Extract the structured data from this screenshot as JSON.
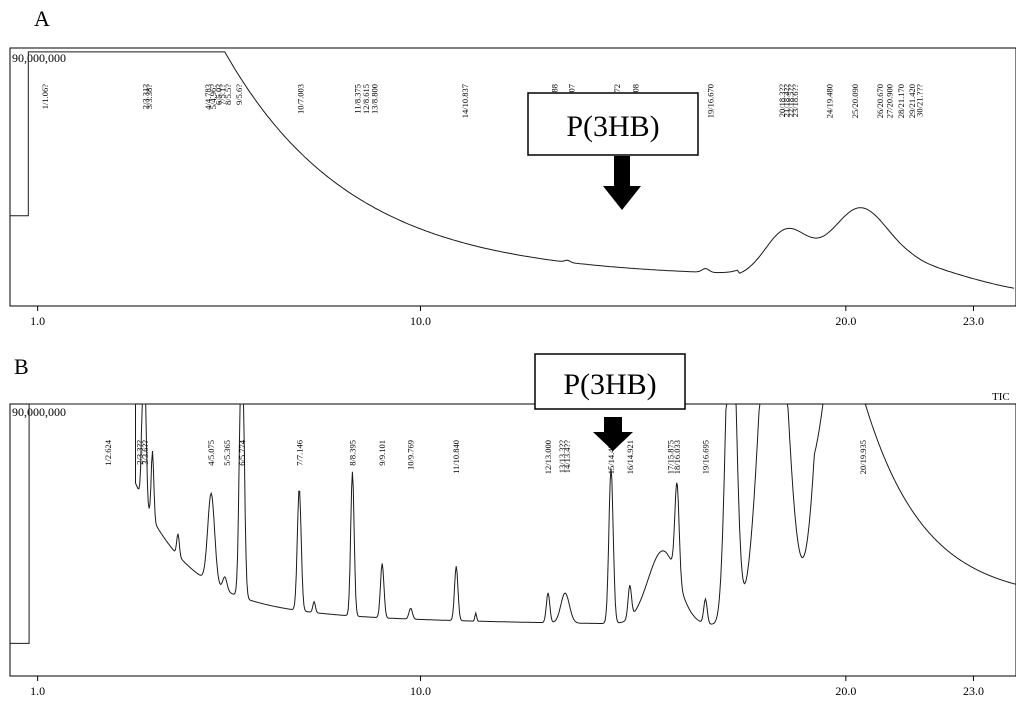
{
  "chart_data": [
    {
      "type": "line",
      "panel_label": "A",
      "y_max_label": "90,000,000",
      "tic_label": "",
      "xlim": [
        0.35,
        24.0
      ],
      "x_ticks": [
        {
          "v": 1.0,
          "label": "1.0"
        },
        {
          "v": 10.0,
          "label": "10.0"
        },
        {
          "v": 20.0,
          "label": "20.0"
        },
        {
          "v": 23.0,
          "label": "23.0"
        }
      ],
      "callout": {
        "label": "P(3HB)",
        "x": 14.5
      },
      "peak_labels": [
        {
          "x": 1.17,
          "text": "1/1.06?"
        },
        {
          "x": 3.53,
          "text": "2/3.31?"
        },
        {
          "x": 3.62,
          "text": "3/3.38?"
        },
        {
          "x": 5.0,
          "text": "4/4.783"
        },
        {
          "x": 5.12,
          "text": "5/4.96?"
        },
        {
          "x": 5.25,
          "text": "6/5.0?"
        },
        {
          "x": 5.33,
          "text": "7/5.1?"
        },
        {
          "x": 5.48,
          "text": "8/5.5?"
        },
        {
          "x": 5.73,
          "text": "9/5.6?"
        },
        {
          "x": 7.18,
          "text": "10/7.003"
        },
        {
          "x": 8.52,
          "text": "11/8.375"
        },
        {
          "x": 8.72,
          "text": "12/8.615"
        },
        {
          "x": 8.92,
          "text": "13/8.800"
        },
        {
          "x": 11.05,
          "text": "14/10.837"
        },
        {
          "x": 13.15,
          "text": "15/12.988"
        },
        {
          "x": 13.55,
          "text": "16/13.407"
        },
        {
          "x": 14.62,
          "text": "17/14.472"
        },
        {
          "x": 15.05,
          "text": "18/14.908"
        },
        {
          "x": 16.82,
          "text": "19/16.670"
        },
        {
          "x": 18.5,
          "text": "20/18.3??"
        },
        {
          "x": 18.6,
          "text": "21/18.4??"
        },
        {
          "x": 18.7,
          "text": "22/18.5??"
        },
        {
          "x": 18.8,
          "text": "23/18.6??"
        },
        {
          "x": 19.62,
          "text": "24/19.480"
        },
        {
          "x": 20.22,
          "text": "25/20.090"
        },
        {
          "x": 20.8,
          "text": "26/20.670"
        },
        {
          "x": 21.03,
          "text": "27/20.900"
        },
        {
          "x": 21.3,
          "text": "28/21.170"
        },
        {
          "x": 21.55,
          "text": "29/21.420"
        },
        {
          "x": 21.73,
          "text": "30/21.???"
        }
      ]
    },
    {
      "type": "line",
      "panel_label": "B",
      "y_max_label": "90,000,000",
      "tic_label": "TIC",
      "xlim": [
        0.35,
        24.0
      ],
      "x_ticks": [
        {
          "v": 1.0,
          "label": "1.0"
        },
        {
          "v": 10.0,
          "label": "10.0"
        },
        {
          "v": 20.0,
          "label": "20.0"
        },
        {
          "v": 23.0,
          "label": "23.0"
        }
      ],
      "callout": {
        "label": "P(3HB)",
        "x": 14.5
      },
      "peak_labels": [
        {
          "x": 2.65,
          "text": "1/2.624"
        },
        {
          "x": 3.4,
          "text": "2/3.3??"
        },
        {
          "x": 3.52,
          "text": "3/3.6??"
        },
        {
          "x": 5.08,
          "text": "4/5.075"
        },
        {
          "x": 5.45,
          "text": "5/5.365"
        },
        {
          "x": 5.8,
          "text": "6/5.774"
        },
        {
          "x": 7.15,
          "text": "7/7.146"
        },
        {
          "x": 8.4,
          "text": "8/8.395"
        },
        {
          "x": 9.1,
          "text": "9/9.101"
        },
        {
          "x": 9.77,
          "text": "10/9.769"
        },
        {
          "x": 10.84,
          "text": "11/10.840"
        },
        {
          "x": 13.0,
          "text": "12/13.000"
        },
        {
          "x": 13.33,
          "text": "13/13.3??"
        },
        {
          "x": 13.45,
          "text": "14/13.4??"
        },
        {
          "x": 14.48,
          "text": "15/14.484"
        },
        {
          "x": 14.92,
          "text": "16/14.921"
        },
        {
          "x": 15.88,
          "text": "17/15.875"
        },
        {
          "x": 16.03,
          "text": "18/16.033"
        },
        {
          "x": 16.7,
          "text": "19/16.695"
        },
        {
          "x": 20.4,
          "text": "20/19.935"
        }
      ]
    }
  ]
}
